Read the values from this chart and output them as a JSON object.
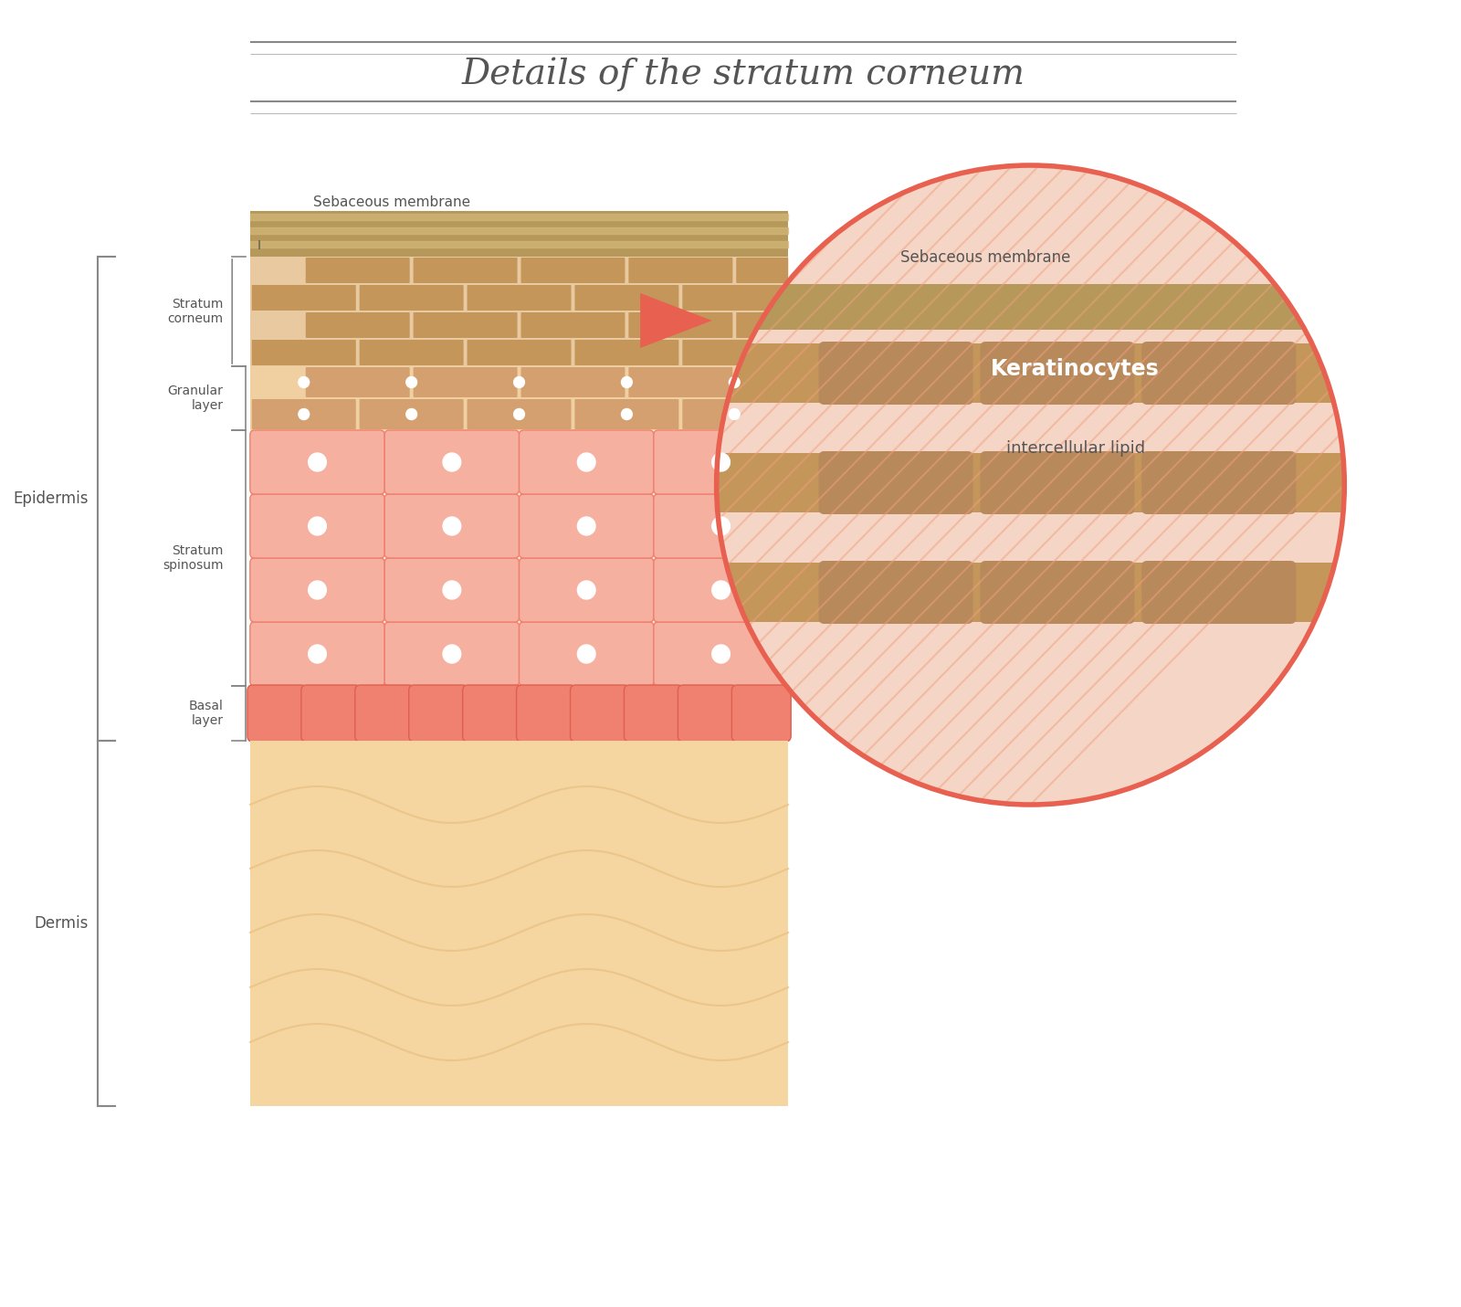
{
  "title": "Details of the stratum corneum",
  "title_fontsize": 28,
  "title_color": "#555555",
  "bg_color": "#ffffff",
  "colors": {
    "sebaceous_membrane": "#b5985a",
    "sebaceous_membrane_light": "#d4b87a",
    "stratum_corneum_brick": "#c4965a",
    "stratum_corneum_mortar": "#e8c9a0",
    "granular_layer": "#d4a070",
    "granular_layer_light": "#f0d0a0",
    "spinosum_fill": "#f5b0a0",
    "spinosum_border": "#f08070",
    "basal_fill": "#f08070",
    "basal_border": "#e06050",
    "dermis_fill": "#f5d5a0",
    "dermis_wave": "#e8c080",
    "circle_stroke": "#e86050",
    "arrow_fill": "#e86050",
    "hatch_bg": "#f5d5c5",
    "keratinocyte_fill": "#c4965a",
    "lipid_label_color": "#666666",
    "keratinocyte_label_color": "#ffffff",
    "text_color": "#555555",
    "bracket_color": "#888888"
  },
  "layer_labels": {
    "sebaceous_membrane": "Sebaceous membrane",
    "stratum_corneum": "Stratum\ncorneum",
    "granular_layer": "Granular\nlayer",
    "epidermis": "Epidermis",
    "stratum_spinosum": "Stratum\nspinosum",
    "basal_layer": "Basal\nlayer",
    "dermis": "Dermis"
  },
  "zoom_labels": {
    "sebaceous_membrane": "Sebaceous membrane",
    "keratinocytes": "Keratinocytes",
    "intercellular_lipid": "intercellular lipid"
  }
}
